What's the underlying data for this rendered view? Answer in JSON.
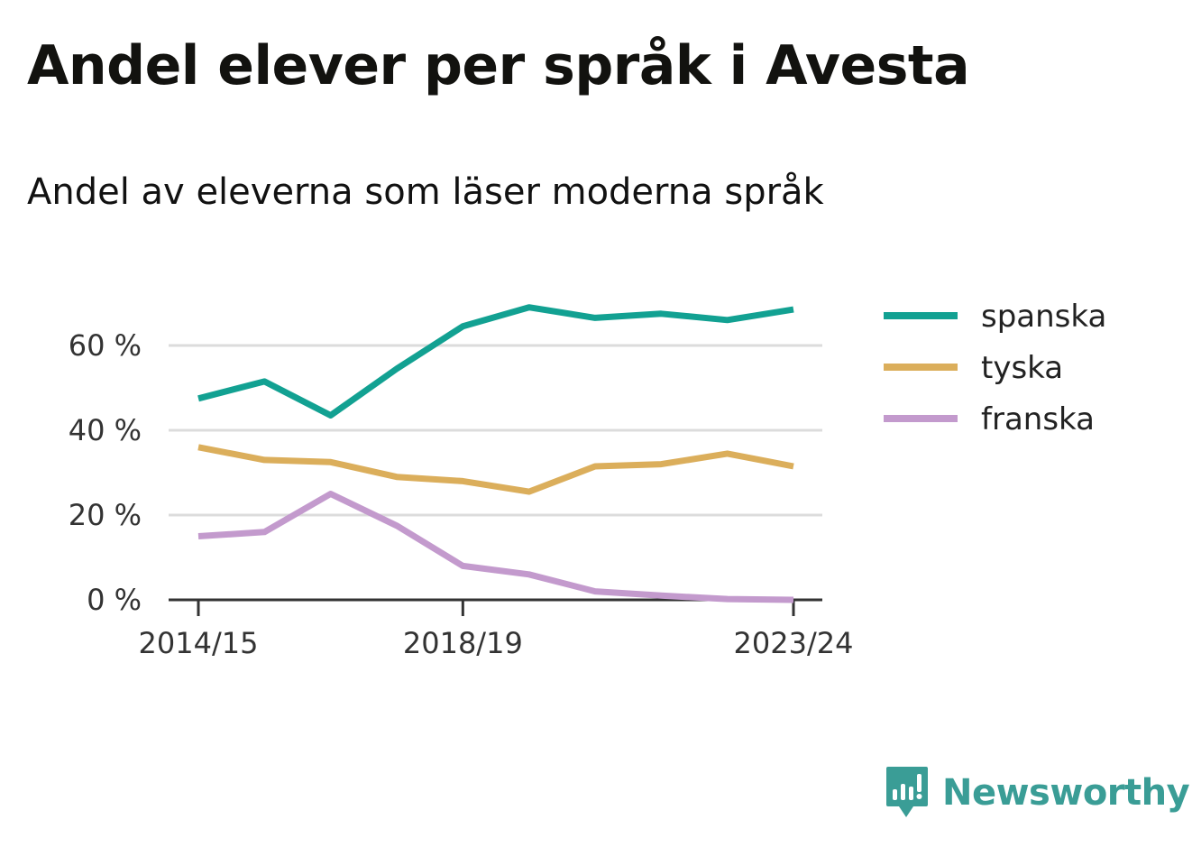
{
  "title": "Andel elever per språk i Avesta",
  "subtitle": "Andel av eleverna som läser moderna språk",
  "brand": {
    "name": "Newsworthy",
    "color": "#3a9d96",
    "icon": "newsworthy-logo-icon"
  },
  "chart_data": {
    "type": "line",
    "x": [
      "2014/15",
      "2015/16",
      "2016/17",
      "2017/18",
      "2018/19",
      "2019/20",
      "2020/21",
      "2021/22",
      "2022/23",
      "2023/24"
    ],
    "x_tick_labels": [
      "2014/15",
      "2018/19",
      "2023/24"
    ],
    "y_ticks": [
      0,
      20,
      40,
      60
    ],
    "y_tick_labels": [
      "0 %",
      "20 %",
      "40 %",
      "60 %"
    ],
    "ylim": [
      0,
      72
    ],
    "grid": true,
    "legend_position": "right",
    "series": [
      {
        "name": "spanska",
        "color": "#12a192",
        "values": [
          47.5,
          51.5,
          43.5,
          54.5,
          64.5,
          69,
          66.5,
          67.5,
          66,
          68.5
        ]
      },
      {
        "name": "tyska",
        "color": "#dbae5b",
        "values": [
          36,
          33,
          32.5,
          29,
          28,
          25.5,
          31.5,
          32,
          34.5,
          31.5
        ]
      },
      {
        "name": "franska",
        "color": "#c39acd",
        "values": [
          15,
          16,
          25,
          17.5,
          8,
          6,
          2,
          1,
          0.2,
          0
        ]
      }
    ]
  }
}
